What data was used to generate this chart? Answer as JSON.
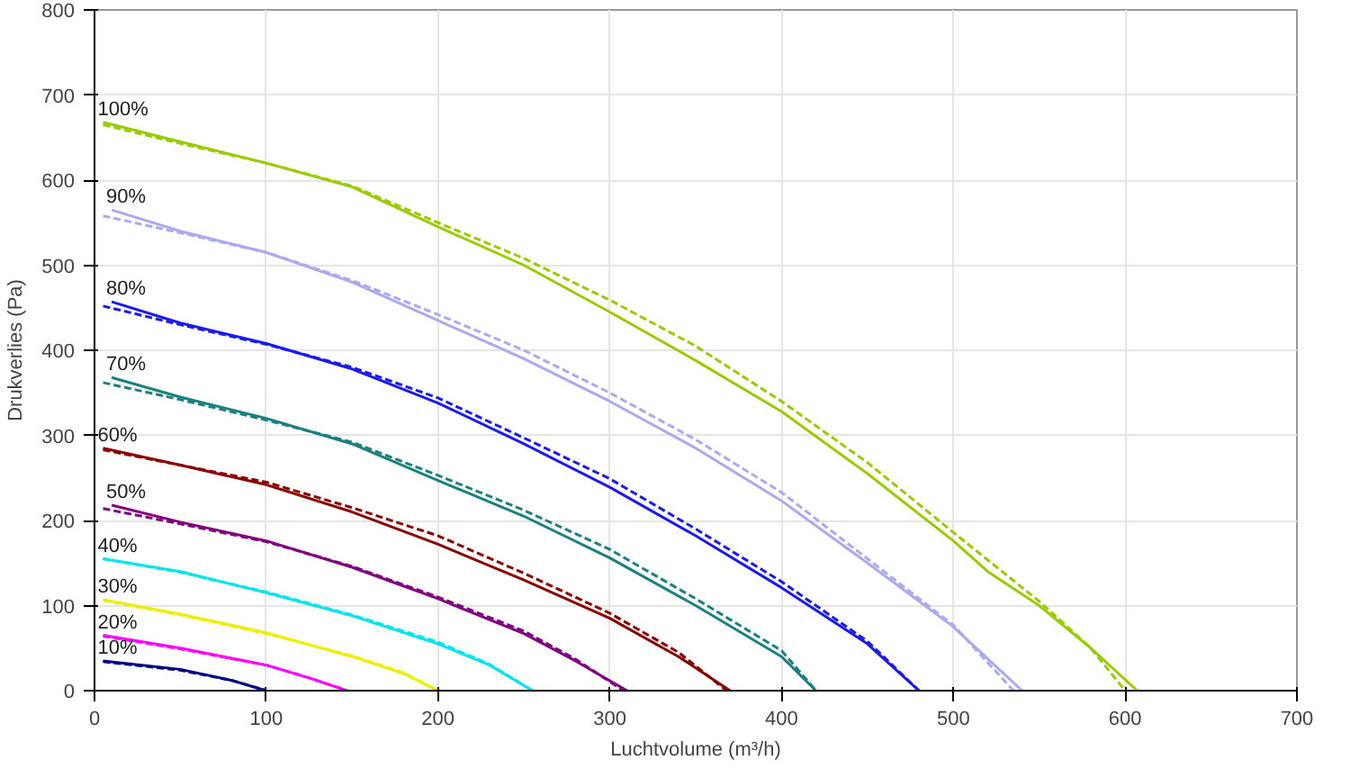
{
  "chart_data": {
    "type": "line",
    "xlabel": "Luchtvolume (m³/h)",
    "ylabel": "Drukverlies (Pa)",
    "xlim": [
      0,
      700
    ],
    "ylim": [
      0,
      800
    ],
    "xticks": [
      0,
      100,
      200,
      300,
      400,
      500,
      600,
      700
    ],
    "yticks": [
      0,
      100,
      200,
      300,
      400,
      500,
      600,
      700,
      800
    ],
    "grid": true,
    "series": [
      {
        "name": "100%",
        "color": "#99cc00",
        "x": [
          5,
          50,
          100,
          150,
          200,
          250,
          300,
          350,
          400,
          450,
          500,
          520,
          550,
          580,
          607
        ],
        "values": [
          668,
          645,
          620,
          592,
          545,
          500,
          445,
          388,
          328,
          255,
          176,
          140,
          100,
          50,
          0
        ]
      },
      {
        "color": "#99cc00",
        "line_style": "dashed",
        "x": [
          5,
          50,
          100,
          150,
          200,
          250,
          300,
          350,
          400,
          450,
          500,
          550,
          580,
          600
        ],
        "values": [
          665,
          643,
          620,
          593,
          550,
          508,
          459,
          405,
          340,
          268,
          186,
          105,
          50,
          0
        ]
      },
      {
        "name": "90%",
        "color": "#aaaaee",
        "x": [
          10,
          50,
          100,
          150,
          200,
          250,
          300,
          350,
          400,
          450,
          500,
          540
        ],
        "values": [
          565,
          540,
          515,
          480,
          435,
          390,
          340,
          285,
          223,
          150,
          75,
          0
        ]
      },
      {
        "color": "#aaaaee",
        "line_style": "dashed",
        "x": [
          5,
          50,
          100,
          150,
          200,
          250,
          300,
          350,
          400,
          450,
          500,
          535
        ],
        "values": [
          558,
          538,
          515,
          482,
          442,
          400,
          350,
          295,
          233,
          155,
          77,
          0
        ]
      },
      {
        "name": "80%",
        "color": "#1a1aee",
        "x": [
          10,
          50,
          100,
          150,
          200,
          250,
          300,
          350,
          400,
          450,
          480
        ],
        "values": [
          457,
          432,
          408,
          378,
          338,
          290,
          239,
          182,
          121,
          55,
          0
        ]
      },
      {
        "color": "#1a1aee",
        "line_style": "dashed",
        "x": [
          5,
          50,
          100,
          150,
          200,
          250,
          300,
          350,
          400,
          450,
          480
        ],
        "values": [
          452,
          430,
          407,
          380,
          344,
          297,
          249,
          190,
          128,
          58,
          0
        ]
      },
      {
        "name": "70%",
        "color": "#1a8080",
        "x": [
          10,
          50,
          100,
          150,
          200,
          250,
          300,
          350,
          400,
          420
        ],
        "values": [
          368,
          345,
          320,
          290,
          247,
          205,
          156,
          100,
          40,
          0
        ]
      },
      {
        "color": "#1a8080",
        "line_style": "dashed",
        "x": [
          5,
          50,
          100,
          150,
          200,
          250,
          300,
          350,
          400,
          420
        ],
        "values": [
          362,
          342,
          318,
          292,
          253,
          212,
          166,
          108,
          47,
          0
        ]
      },
      {
        "name": "60%",
        "color": "#8b0000",
        "x": [
          5,
          50,
          100,
          150,
          200,
          250,
          300,
          340,
          370
        ],
        "values": [
          285,
          265,
          242,
          210,
          172,
          130,
          85,
          40,
          0
        ]
      },
      {
        "color": "#8b0000",
        "line_style": "dashed",
        "x": [
          5,
          50,
          100,
          150,
          200,
          250,
          300,
          340,
          368
        ],
        "values": [
          283,
          265,
          245,
          215,
          182,
          138,
          91,
          45,
          0
        ]
      },
      {
        "name": "50%",
        "color": "#800080",
        "x": [
          10,
          50,
          100,
          150,
          200,
          250,
          280,
          310
        ],
        "values": [
          218,
          198,
          176,
          145,
          108,
          67,
          35,
          0
        ]
      },
      {
        "color": "#800080",
        "line_style": "dashed",
        "x": [
          5,
          50,
          100,
          150,
          200,
          250,
          280,
          308
        ],
        "values": [
          214,
          196,
          175,
          146,
          110,
          70,
          37,
          0
        ]
      },
      {
        "name": "40%",
        "color": "#00e5ee",
        "x": [
          5,
          50,
          100,
          150,
          200,
          230,
          255
        ],
        "values": [
          155,
          140,
          115,
          88,
          55,
          30,
          0
        ]
      },
      {
        "color": "#00e5ee",
        "line_style": "dashed",
        "x": [
          5,
          50,
          100,
          150,
          200,
          230,
          255
        ],
        "values": [
          155,
          139,
          116,
          89,
          57,
          31,
          0
        ]
      },
      {
        "name": "30%",
        "color": "#eeee00",
        "x": [
          5,
          50,
          100,
          150,
          180,
          200
        ],
        "values": [
          107,
          90,
          68,
          40,
          20,
          0
        ]
      },
      {
        "color": "#eeee00",
        "line_style": "dashed",
        "x": [
          5,
          50,
          100,
          150,
          180,
          200
        ],
        "values": [
          106,
          89,
          67,
          41,
          21,
          0
        ]
      },
      {
        "name": "20%",
        "color": "#ff00ff",
        "x": [
          5,
          50,
          100,
          125,
          147
        ],
        "values": [
          65,
          50,
          30,
          15,
          0
        ]
      },
      {
        "color": "#ff00ff",
        "line_style": "dashed",
        "x": [
          5,
          50,
          100,
          125,
          147
        ],
        "values": [
          64,
          49,
          30,
          15,
          0
        ]
      },
      {
        "name": "10%",
        "color": "#000080",
        "x": [
          5,
          50,
          80,
          100
        ],
        "values": [
          35,
          25,
          12,
          0
        ]
      },
      {
        "color": "#000080",
        "line_style": "dashed",
        "x": [
          5,
          50,
          80,
          100
        ],
        "values": [
          34,
          24,
          12,
          0
        ]
      }
    ]
  }
}
